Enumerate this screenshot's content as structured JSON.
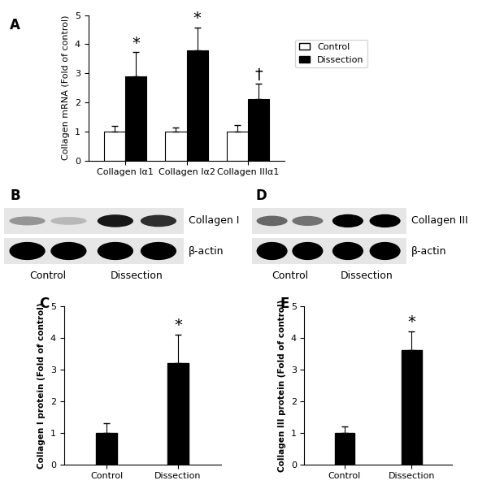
{
  "chart_data": [
    {
      "panel": "A",
      "type": "bar",
      "y_label": "Collagen mRNA (Fold of control)",
      "categories": [
        "Collagen Iα1",
        "Collagen Iα2",
        "Collagen IIIα1"
      ],
      "series": [
        {
          "name": "Control",
          "color": "#ffffff",
          "values": [
            1,
            1,
            1
          ],
          "errors": [
            0.18,
            0.15,
            0.22
          ]
        },
        {
          "name": "Dissection",
          "color": "#000000",
          "values": [
            2.9,
            3.8,
            2.1
          ],
          "errors": [
            0.82,
            0.78,
            0.53
          ],
          "significance": [
            "*",
            "*",
            "†"
          ]
        }
      ],
      "ylim": [
        0,
        5
      ],
      "yticks": [
        0,
        1,
        2,
        3,
        4,
        5
      ],
      "legend": "upper left"
    },
    {
      "panel": "C",
      "type": "bar",
      "y_label": "Collagen I protein (Fold of control)",
      "categories": [
        "Control",
        "Dissection"
      ],
      "values": [
        1,
        3.2
      ],
      "errors": [
        0.3,
        0.9
      ],
      "significance": [
        null,
        "*"
      ],
      "color": "#000000",
      "ylim": [
        0,
        5
      ],
      "yticks": [
        0,
        1,
        2,
        3,
        4,
        5
      ]
    },
    {
      "panel": "E",
      "type": "bar",
      "y_label": "Collagen III protein (Fold of control)",
      "categories": [
        "Control",
        "Dissection"
      ],
      "values": [
        1,
        3.6
      ],
      "errors": [
        0.2,
        0.6
      ],
      "significance": [
        null,
        "*"
      ],
      "color": "#000000",
      "ylim": [
        0,
        5
      ],
      "yticks": [
        0,
        1,
        2,
        3,
        4,
        5
      ]
    }
  ],
  "blots": [
    {
      "panel": "B",
      "rows": [
        "Collagen I",
        "β-actin"
      ],
      "groups": [
        "Control",
        "Dissection"
      ]
    },
    {
      "panel": "D",
      "rows": [
        "Collagen III",
        "β-actin"
      ],
      "groups": [
        "Control",
        "Dissection"
      ]
    }
  ]
}
